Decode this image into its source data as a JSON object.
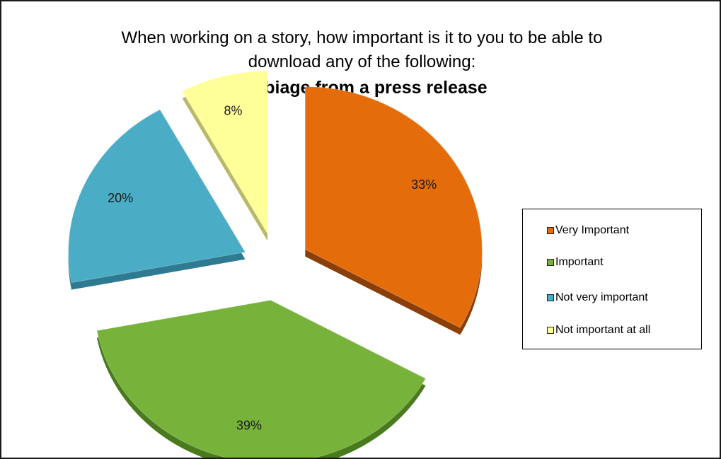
{
  "chart_data": {
    "type": "pie",
    "title_line1": "When working on a story, how important is it to you to be able to",
    "title_line2": "download any of the following:",
    "subtitle": "Verbiage from a press release",
    "slices": [
      {
        "label": "Very Important",
        "value": 33,
        "display": "33%",
        "color": "#E46C0A",
        "side": "#8B3F08"
      },
      {
        "label": "Important",
        "value": 39,
        "display": "39%",
        "color": "#77B33A",
        "side": "#4A7A1E"
      },
      {
        "label": "Not very important",
        "value": 20,
        "display": "20%",
        "color": "#4BACC6",
        "side": "#2E7A90"
      },
      {
        "label": "Not important at all",
        "value": 8,
        "display": "8%",
        "color": "#FFFF99",
        "side": "#B8B86A"
      }
    ],
    "legend_placement": "right"
  }
}
